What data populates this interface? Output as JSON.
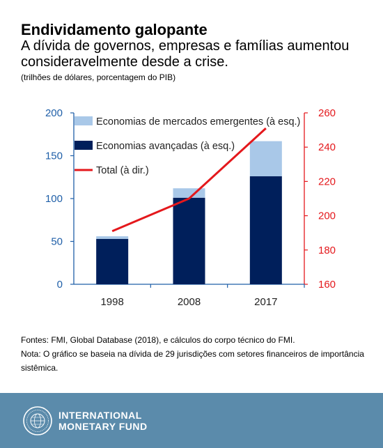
{
  "header": {
    "title": "Endividamento galopante",
    "subtitle": "A dívida de governos, empresas e famílias aumentou consideravelmente desde a crise.",
    "units": "(trilhões de dólares, porcentagem do PIB)"
  },
  "chart_data": {
    "type": "bar",
    "categories": [
      "1998",
      "2008",
      "2017"
    ],
    "series": [
      {
        "name": "Economias avançadas (à esq.)",
        "kind": "bar",
        "axis": "left",
        "color": "#001f5b",
        "values": [
          53,
          101,
          126
        ]
      },
      {
        "name": "Economias de mercados emergentes (à esq.)",
        "kind": "bar",
        "axis": "left",
        "color": "#a9c8e8",
        "values": [
          3,
          11,
          41
        ]
      },
      {
        "name": "Total (à dir.)",
        "kind": "line",
        "axis": "right",
        "color": "#e4181c",
        "values": [
          191,
          210,
          251
        ]
      }
    ],
    "stacked": true,
    "left_axis": {
      "ylim": [
        0,
        200
      ],
      "ticks": [
        "0",
        "50",
        "100",
        "150",
        "200"
      ],
      "color": "#1f5fa8"
    },
    "right_axis": {
      "ylim": [
        160,
        260
      ],
      "ticks": [
        "160",
        "180",
        "200",
        "220",
        "240",
        "260"
      ],
      "color": "#e4181c"
    },
    "legend_position": "top-left",
    "grid": false
  },
  "notes": {
    "sources": "Fontes: FMI, Global Database (2018), e cálculos do corpo técnico do FMI.",
    "note": "Nota: O gráfico se baseia na dívida de 29 jurisdições com setores financeiros de importância sistêmica."
  },
  "footer": {
    "org_line1": "INTERNATIONAL",
    "org_line2": "MONETARY FUND",
    "seal_icon": "imf-seal-icon",
    "background": "#5b8bab"
  }
}
